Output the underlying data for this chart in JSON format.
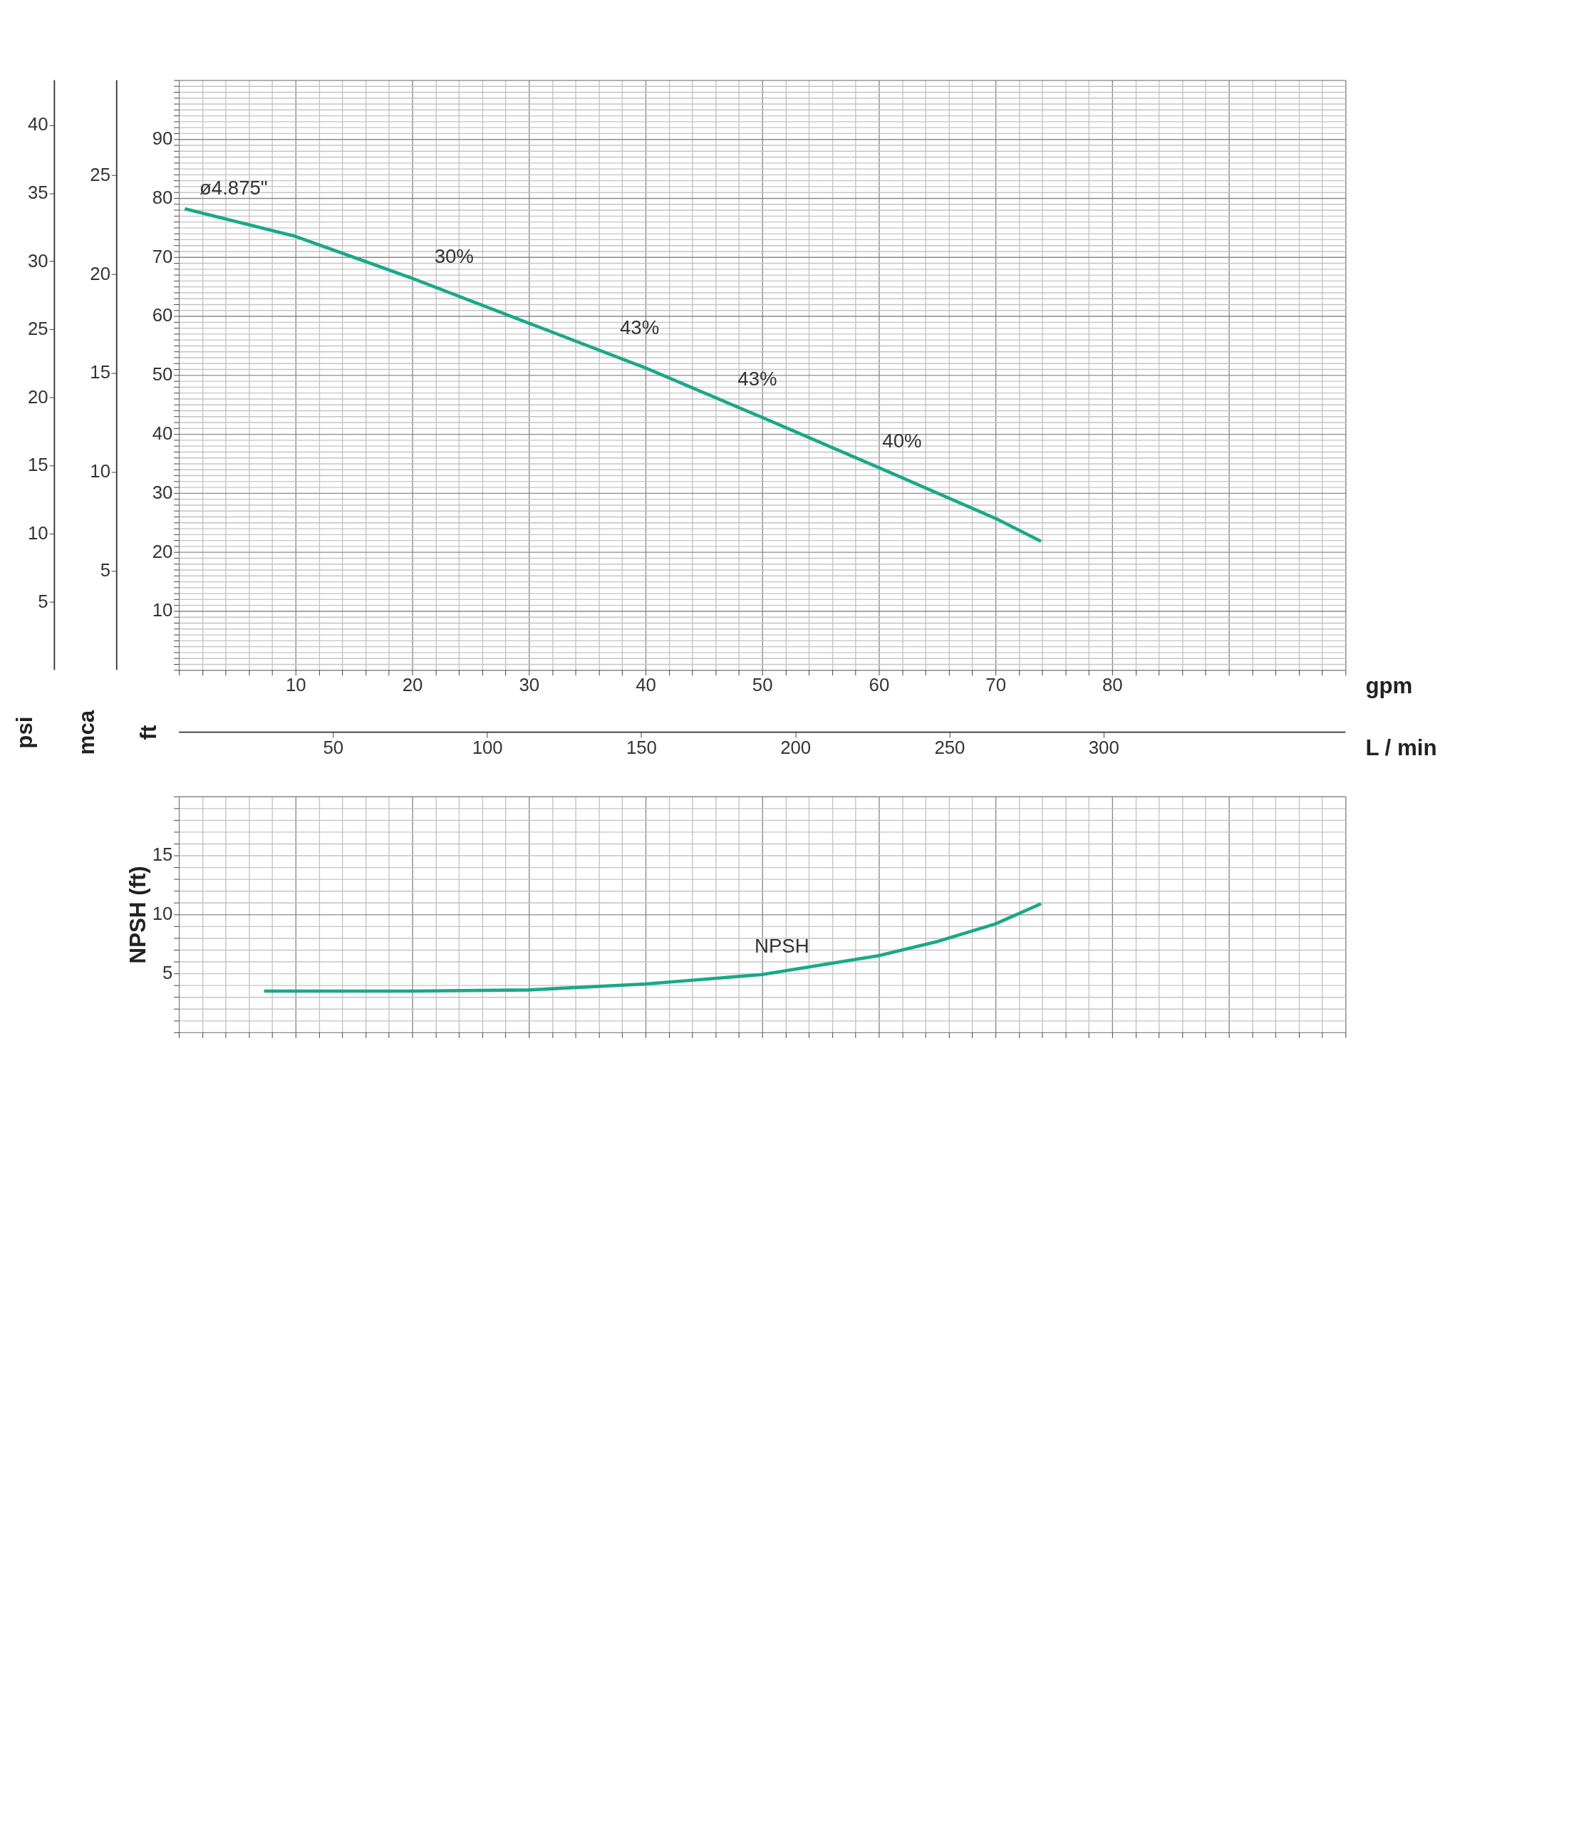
{
  "chart_data": [
    {
      "type": "line",
      "xlabel": "gpm",
      "ylabel": "ft",
      "y2label": "psi",
      "y3label": "mca",
      "x2label": "L / min",
      "xlim": [
        0,
        100
      ],
      "ylim": [
        0,
        100
      ],
      "y2lim": [
        0,
        43.3
      ],
      "y3lim": [
        0,
        29.8
      ],
      "x2lim": [
        0,
        378.5
      ],
      "xticks": [
        {
          "value": 0,
          "label": null
        },
        {
          "value": 2,
          "label": null
        },
        {
          "value": 4,
          "label": null
        },
        {
          "value": 6,
          "label": null
        },
        {
          "value": 8,
          "label": null
        },
        10,
        {
          "value": 12,
          "label": null
        },
        {
          "value": 14,
          "label": null
        },
        {
          "value": 16,
          "label": null
        },
        {
          "value": 18,
          "label": null
        },
        20,
        {
          "value": 22,
          "label": null
        },
        {
          "value": 24,
          "label": null
        },
        {
          "value": 26,
          "label": null
        },
        {
          "value": 28,
          "label": null
        },
        30,
        {
          "value": 32,
          "label": null
        },
        {
          "value": 34,
          "label": null
        },
        {
          "value": 36,
          "label": null
        },
        {
          "value": 38,
          "label": null
        },
        40,
        {
          "value": 42,
          "label": null
        },
        {
          "value": 44,
          "label": null
        },
        {
          "value": 46,
          "label": null
        },
        {
          "value": 48,
          "label": null
        },
        50,
        {
          "value": 52,
          "label": null
        },
        {
          "value": 54,
          "label": null
        },
        {
          "value": 56,
          "label": null
        },
        {
          "value": 58,
          "label": null
        },
        60,
        {
          "value": 62,
          "label": null
        },
        {
          "value": 64,
          "label": null
        },
        {
          "value": 66,
          "label": null
        },
        {
          "value": 68,
          "label": null
        },
        70,
        {
          "value": 72,
          "label": null
        },
        {
          "value": 74,
          "label": null
        },
        {
          "value": 76,
          "label": null
        },
        {
          "value": 78,
          "label": null
        },
        80,
        {
          "value": 82,
          "label": null
        },
        {
          "value": 84,
          "label": null
        },
        {
          "value": 86,
          "label": null
        },
        {
          "value": 88,
          "label": null
        },
        {
          "value": 90,
          "label": null
        },
        {
          "value": 92,
          "label": null
        },
        {
          "value": 94,
          "label": null
        },
        {
          "value": 96,
          "label": null
        },
        {
          "value": 98,
          "label": null
        },
        {
          "value": 100,
          "label": null
        }
      ],
      "yticks": [
        {
          "value": 0,
          "label": null
        },
        {
          "value": 1,
          "label": null
        },
        {
          "value": 2,
          "label": null
        },
        {
          "value": 3,
          "label": null
        },
        {
          "value": 4,
          "label": null
        },
        {
          "value": 5,
          "label": null
        },
        {
          "value": 6,
          "label": null
        },
        {
          "value": 7,
          "label": null
        },
        {
          "value": 8,
          "label": null
        },
        {
          "value": 9,
          "label": null
        },
        10,
        {
          "value": 11,
          "label": null
        },
        {
          "value": 12,
          "label": null
        },
        {
          "value": 13,
          "label": null
        },
        {
          "value": 14,
          "label": null
        },
        {
          "value": 15,
          "label": null
        },
        {
          "value": 16,
          "label": null
        },
        {
          "value": 17,
          "label": null
        },
        {
          "value": 18,
          "label": null
        },
        {
          "value": 19,
          "label": null
        },
        20,
        {
          "value": 21,
          "label": null
        },
        {
          "value": 22,
          "label": null
        },
        {
          "value": 23,
          "label": null
        },
        {
          "value": 24,
          "label": null
        },
        {
          "value": 25,
          "label": null
        },
        {
          "value": 26,
          "label": null
        },
        {
          "value": 27,
          "label": null
        },
        {
          "value": 28,
          "label": null
        },
        {
          "value": 29,
          "label": null
        },
        30,
        {
          "value": 31,
          "label": null
        },
        {
          "value": 32,
          "label": null
        },
        {
          "value": 33,
          "label": null
        },
        {
          "value": 34,
          "label": null
        },
        {
          "value": 35,
          "label": null
        },
        {
          "value": 36,
          "label": null
        },
        {
          "value": 37,
          "label": null
        },
        {
          "value": 38,
          "label": null
        },
        {
          "value": 39,
          "label": null
        },
        40,
        {
          "value": 41,
          "label": null
        },
        {
          "value": 42,
          "label": null
        },
        {
          "value": 43,
          "label": null
        },
        {
          "value": 44,
          "label": null
        },
        {
          "value": 45,
          "label": null
        },
        {
          "value": 46,
          "label": null
        },
        {
          "value": 47,
          "label": null
        },
        {
          "value": 48,
          "label": null
        },
        {
          "value": 49,
          "label": null
        },
        50,
        {
          "value": 51,
          "label": null
        },
        {
          "value": 52,
          "label": null
        },
        {
          "value": 53,
          "label": null
        },
        {
          "value": 54,
          "label": null
        },
        {
          "value": 55,
          "label": null
        },
        {
          "value": 56,
          "label": null
        },
        {
          "value": 57,
          "label": null
        },
        {
          "value": 58,
          "label": null
        },
        {
          "value": 59,
          "label": null
        },
        60,
        {
          "value": 61,
          "label": null
        },
        {
          "value": 62,
          "label": null
        },
        {
          "value": 63,
          "label": null
        },
        {
          "value": 64,
          "label": null
        },
        {
          "value": 65,
          "label": null
        },
        {
          "value": 66,
          "label": null
        },
        {
          "value": 67,
          "label": null
        },
        {
          "value": 68,
          "label": null
        },
        {
          "value": 69,
          "label": null
        },
        70,
        {
          "value": 71,
          "label": null
        },
        {
          "value": 72,
          "label": null
        },
        {
          "value": 73,
          "label": null
        },
        {
          "value": 74,
          "label": null
        },
        {
          "value": 75,
          "label": null
        },
        {
          "value": 76,
          "label": null
        },
        {
          "value": 77,
          "label": null
        },
        {
          "value": 78,
          "label": null
        },
        {
          "value": 79,
          "label": null
        },
        80,
        {
          "value": 81,
          "label": null
        },
        {
          "value": 82,
          "label": null
        },
        {
          "value": 83,
          "label": null
        },
        {
          "value": 84,
          "label": null
        },
        {
          "value": 85,
          "label": null
        },
        {
          "value": 86,
          "label": null
        },
        {
          "value": 87,
          "label": null
        },
        {
          "value": 88,
          "label": null
        },
        {
          "value": 89,
          "label": null
        },
        90,
        {
          "value": 91,
          "label": null
        },
        {
          "value": 92,
          "label": null
        },
        {
          "value": 93,
          "label": null
        },
        {
          "value": 94,
          "label": null
        },
        {
          "value": 95,
          "label": null
        },
        {
          "value": 96,
          "label": null
        },
        {
          "value": 97,
          "label": null
        },
        {
          "value": 98,
          "label": null
        },
        {
          "value": 99,
          "label": null
        },
        {
          "value": 100,
          "label": null
        }
      ],
      "y2ticks": [
        5,
        10,
        15,
        20,
        25,
        30,
        35,
        40
      ],
      "y3ticks": [
        5,
        10,
        15,
        20,
        25
      ],
      "x2ticks": [
        50,
        100,
        150,
        200,
        250,
        300
      ],
      "grid": true,
      "marker": "none",
      "line_style": "solid",
      "series": [
        {
          "color": "#1aa88a",
          "x": [
            0.5,
            10,
            20,
            30,
            40,
            50,
            60,
            70,
            73.9
          ],
          "values": [
            78.2,
            73.5,
            66.4,
            58.8,
            51.2,
            42.8,
            34.3,
            25.7,
            21.8
          ]
        }
      ],
      "annotations": [
        {
          "text": "ø4.875\"",
          "x": 3,
          "y": 77
        },
        {
          "text": "30%",
          "x": 21.9,
          "y": 65.3
        },
        {
          "text": "43%",
          "x": 37.8,
          "y": 53.3
        },
        {
          "text": "43%",
          "x": 47.9,
          "y": 44.6
        },
        {
          "text": "40%",
          "x": 60.3,
          "y": 34.0
        }
      ]
    },
    {
      "type": "line",
      "ylabel": "NPSH (ft)",
      "xlim": [
        0,
        100
      ],
      "ylim": [
        0,
        20
      ],
      "tick_labels": "y",
      "xticks": [
        {
          "value": 0,
          "label": null
        },
        {
          "value": 2,
          "label": null
        },
        {
          "value": 4,
          "label": null
        },
        {
          "value": 6,
          "label": null
        },
        {
          "value": 8,
          "label": null
        },
        {
          "value": 10,
          "label": null
        },
        {
          "value": 12,
          "label": null
        },
        {
          "value": 14,
          "label": null
        },
        {
          "value": 16,
          "label": null
        },
        {
          "value": 18,
          "label": null
        },
        {
          "value": 20,
          "label": null
        },
        {
          "value": 22,
          "label": null
        },
        {
          "value": 24,
          "label": null
        },
        {
          "value": 26,
          "label": null
        },
        {
          "value": 28,
          "label": null
        },
        {
          "value": 30,
          "label": null
        },
        {
          "value": 32,
          "label": null
        },
        {
          "value": 34,
          "label": null
        },
        {
          "value": 36,
          "label": null
        },
        {
          "value": 38,
          "label": null
        },
        {
          "value": 40,
          "label": null
        },
        {
          "value": 42,
          "label": null
        },
        {
          "value": 44,
          "label": null
        },
        {
          "value": 46,
          "label": null
        },
        {
          "value": 48,
          "label": null
        },
        {
          "value": 50,
          "label": null
        },
        {
          "value": 52,
          "label": null
        },
        {
          "value": 54,
          "label": null
        },
        {
          "value": 56,
          "label": null
        },
        {
          "value": 58,
          "label": null
        },
        {
          "value": 60,
          "label": null
        },
        {
          "value": 62,
          "label": null
        },
        {
          "value": 64,
          "label": null
        },
        {
          "value": 66,
          "label": null
        },
        {
          "value": 68,
          "label": null
        },
        {
          "value": 70,
          "label": null
        },
        {
          "value": 72,
          "label": null
        },
        {
          "value": 74,
          "label": null
        },
        {
          "value": 76,
          "label": null
        },
        {
          "value": 78,
          "label": null
        },
        {
          "value": 80,
          "label": null
        },
        {
          "value": 82,
          "label": null
        },
        {
          "value": 84,
          "label": null
        },
        {
          "value": 86,
          "label": null
        },
        {
          "value": 88,
          "label": null
        },
        {
          "value": 90,
          "label": null
        },
        {
          "value": 92,
          "label": null
        },
        {
          "value": 94,
          "label": null
        },
        {
          "value": 96,
          "label": null
        },
        {
          "value": 98,
          "label": null
        },
        {
          "value": 100,
          "label": null
        }
      ],
      "yticks": [
        {
          "value": 0,
          "label": null
        },
        {
          "value": 1,
          "label": null
        },
        {
          "value": 2,
          "label": null
        },
        {
          "value": 3,
          "label": null
        },
        {
          "value": 4,
          "label": null
        },
        5,
        {
          "value": 6,
          "label": null
        },
        {
          "value": 7,
          "label": null
        },
        {
          "value": 8,
          "label": null
        },
        {
          "value": 9,
          "label": null
        },
        10,
        {
          "value": 11,
          "label": null
        },
        {
          "value": 12,
          "label": null
        },
        {
          "value": 13,
          "label": null
        },
        {
          "value": 14,
          "label": null
        },
        15,
        {
          "value": 16,
          "label": null
        },
        {
          "value": 17,
          "label": null
        },
        {
          "value": 18,
          "label": null
        },
        {
          "value": 19,
          "label": null
        },
        {
          "value": 20,
          "label": null
        }
      ],
      "grid": true,
      "marker": "none",
      "line_style": "solid",
      "series": [
        {
          "color": "#1aa88a",
          "x": [
            7.3,
            10,
            20,
            30,
            40,
            50,
            60,
            65,
            70,
            73.9
          ],
          "values": [
            3.5,
            3.5,
            3.5,
            3.6,
            4.1,
            4.9,
            6.5,
            7.7,
            9.2,
            10.9
          ]
        }
      ],
      "annotations": [
        {
          "text": "NPSH",
          "x": 50,
          "y": 4.9
        }
      ]
    }
  ]
}
